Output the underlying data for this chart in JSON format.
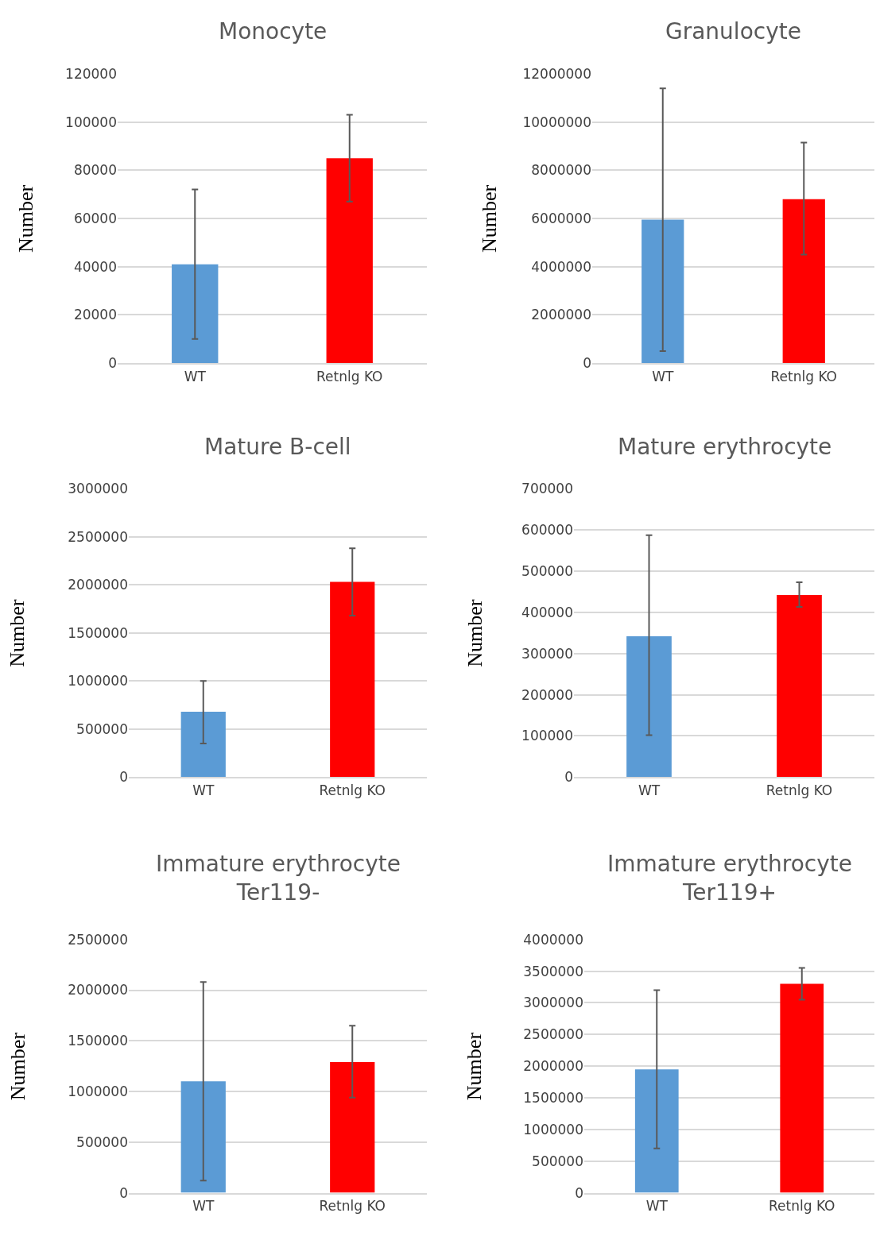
{
  "chart_data": [
    {
      "type": "bar",
      "title": "Monocyte",
      "ylabel": "Number",
      "categories": [
        "WT",
        "Retnlg KO"
      ],
      "values": [
        41000,
        85000
      ],
      "colors": [
        "#5b9bd5",
        "#ff0000"
      ],
      "errors": [
        [
          10000,
          72000
        ],
        [
          67000,
          103000
        ]
      ],
      "ylim": [
        0,
        120000
      ],
      "yticks": [
        0,
        20000,
        40000,
        60000,
        80000,
        100000,
        120000
      ],
      "grid": "y"
    },
    {
      "type": "bar",
      "title": "Granulocyte",
      "ylabel": "Number",
      "categories": [
        "WT",
        "Retnlg KO"
      ],
      "values": [
        5950000,
        6800000
      ],
      "colors": [
        "#5b9bd5",
        "#ff0000"
      ],
      "errors": [
        [
          500000,
          11400000
        ],
        [
          4500000,
          9150000
        ]
      ],
      "ylim": [
        0,
        12000000
      ],
      "yticks": [
        0,
        2000000,
        4000000,
        6000000,
        8000000,
        10000000,
        12000000
      ],
      "grid": "y"
    },
    {
      "type": "bar",
      "title": "Mature B-cell",
      "ylabel": "Number",
      "categories": [
        "WT",
        "Retnlg KO"
      ],
      "values": [
        680000,
        2030000
      ],
      "colors": [
        "#5b9bd5",
        "#ff0000"
      ],
      "errors": [
        [
          350000,
          1000000
        ],
        [
          1680000,
          2380000
        ]
      ],
      "ylim": [
        0,
        3000000
      ],
      "yticks": [
        0,
        500000,
        1000000,
        1500000,
        2000000,
        2500000,
        3000000
      ],
      "grid": "y"
    },
    {
      "type": "bar",
      "title": "Mature erythrocyte",
      "ylabel": "Number",
      "categories": [
        "WT",
        "Retnlg KO"
      ],
      "values": [
        342000,
        442000
      ],
      "colors": [
        "#5b9bd5",
        "#ff0000"
      ],
      "errors": [
        [
          102000,
          587000
        ],
        [
          413000,
          473000
        ]
      ],
      "ylim": [
        0,
        700000
      ],
      "yticks": [
        0,
        100000,
        200000,
        300000,
        400000,
        500000,
        600000,
        700000
      ],
      "grid": "y"
    },
    {
      "type": "bar",
      "title": "Immature erythrocyte\nTer119-",
      "ylabel": "Number",
      "categories": [
        "WT",
        "Retnlg KO"
      ],
      "values": [
        1100000,
        1290000
      ],
      "colors": [
        "#5b9bd5",
        "#ff0000"
      ],
      "errors": [
        [
          120000,
          2080000
        ],
        [
          940000,
          1650000
        ]
      ],
      "ylim": [
        0,
        2500000
      ],
      "yticks": [
        0,
        500000,
        1000000,
        1500000,
        2000000,
        2500000
      ],
      "grid": "y"
    },
    {
      "type": "bar",
      "title": "Immature erythrocyte\nTer119+",
      "ylabel": "Number",
      "categories": [
        "WT",
        "Retnlg KO"
      ],
      "values": [
        1950000,
        3300000
      ],
      "colors": [
        "#5b9bd5",
        "#ff0000"
      ],
      "errors": [
        [
          700000,
          3200000
        ],
        [
          3050000,
          3550000
        ]
      ],
      "ylim": [
        0,
        4000000
      ],
      "yticks": [
        0,
        500000,
        1000000,
        1500000,
        2000000,
        2500000,
        3000000,
        3500000,
        4000000
      ],
      "grid": "y"
    }
  ]
}
